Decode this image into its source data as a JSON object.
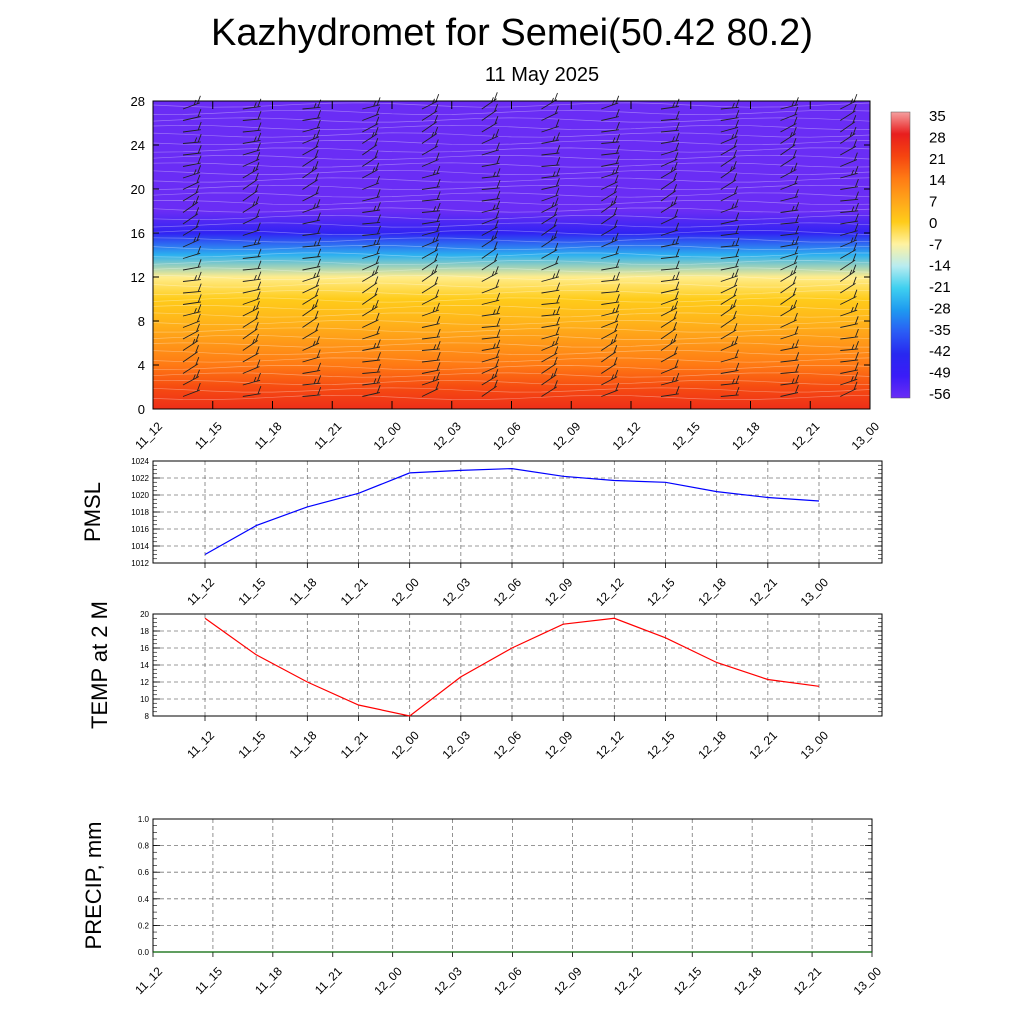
{
  "title": "Kazhydromet for Semei(50.42 80.2)",
  "subtitle": "11 May 2025",
  "colors": {
    "pmsl_line": "#0000ff",
    "temp_line": "#ff0000",
    "precip_line": "#006400",
    "grid": "#777777"
  },
  "chart_data": [
    {
      "id": "profile",
      "type": "heatmap",
      "x_tick_labels": [
        "11_12",
        "11_15",
        "11_18",
        "11_21",
        "12_00",
        "12_03",
        "12_06",
        "12_09",
        "12_12",
        "12_15",
        "12_18",
        "12_21",
        "13_00"
      ],
      "y_tick_labels": [
        "0",
        "4",
        "8",
        "12",
        "16",
        "20",
        "24",
        "28"
      ],
      "ylim": [
        0,
        28
      ],
      "colorbar_labels": [
        "35",
        "28",
        "21",
        "14",
        "7",
        "0",
        "-7",
        "-14",
        "-21",
        "-28",
        "-35",
        "-42",
        "-49",
        "-56"
      ],
      "temperature_profile": {
        "levels": [
          0,
          2,
          4,
          6,
          8,
          10,
          12,
          14,
          16,
          18,
          20,
          22,
          24,
          26,
          28
        ],
        "values": [
          25,
          20,
          14,
          9,
          4,
          0,
          -6,
          -25,
          -45,
          -60,
          -62,
          -63,
          -58,
          -56,
          -56
        ]
      },
      "overlays": "wind barbs and isotherm contours"
    },
    {
      "id": "pmsl",
      "type": "line",
      "ylabel": "PMSL",
      "x": [
        "11_12",
        "11_15",
        "11_18",
        "11_21",
        "12_00",
        "12_03",
        "12_06",
        "12_09",
        "12_12",
        "12_15",
        "12_18",
        "12_21",
        "13_00"
      ],
      "values": [
        1013.0,
        1016.4,
        1018.6,
        1020.2,
        1022.6,
        1022.9,
        1023.1,
        1022.2,
        1021.7,
        1021.5,
        1020.4,
        1019.7,
        1019.3
      ],
      "ylim": [
        1012,
        1024
      ],
      "y_tick_labels": [
        "1012",
        "1014",
        "1016",
        "1018",
        "1020",
        "1022",
        "1024"
      ],
      "grid": true
    },
    {
      "id": "temp2m",
      "type": "line",
      "ylabel": "TEMP at 2 M",
      "x": [
        "11_12",
        "11_15",
        "11_18",
        "11_21",
        "12_00",
        "12_03",
        "12_06",
        "12_09",
        "12_12",
        "12_15",
        "12_18",
        "12_21",
        "13_00"
      ],
      "values": [
        19.5,
        15.2,
        12.0,
        9.3,
        8.0,
        12.6,
        16.0,
        18.8,
        19.5,
        17.2,
        14.3,
        12.3,
        11.5
      ],
      "ylim": [
        8,
        20
      ],
      "y_tick_labels": [
        "8",
        "10",
        "12",
        "14",
        "16",
        "18",
        "20"
      ],
      "grid": true
    },
    {
      "id": "precip",
      "type": "line",
      "ylabel": "PRECIP, mm",
      "x": [
        "11_12",
        "11_15",
        "11_18",
        "11_21",
        "12_00",
        "12_03",
        "12_06",
        "12_09",
        "12_12",
        "12_15",
        "12_18",
        "12_21",
        "13_00"
      ],
      "values": [
        0,
        0,
        0,
        0,
        0,
        0,
        0,
        0,
        0,
        0,
        0,
        0,
        0
      ],
      "ylim": [
        0,
        1
      ],
      "y_tick_labels": [
        "0.0",
        "0.2",
        "0.4",
        "0.6",
        "0.8",
        "1.0"
      ],
      "grid": true
    }
  ]
}
